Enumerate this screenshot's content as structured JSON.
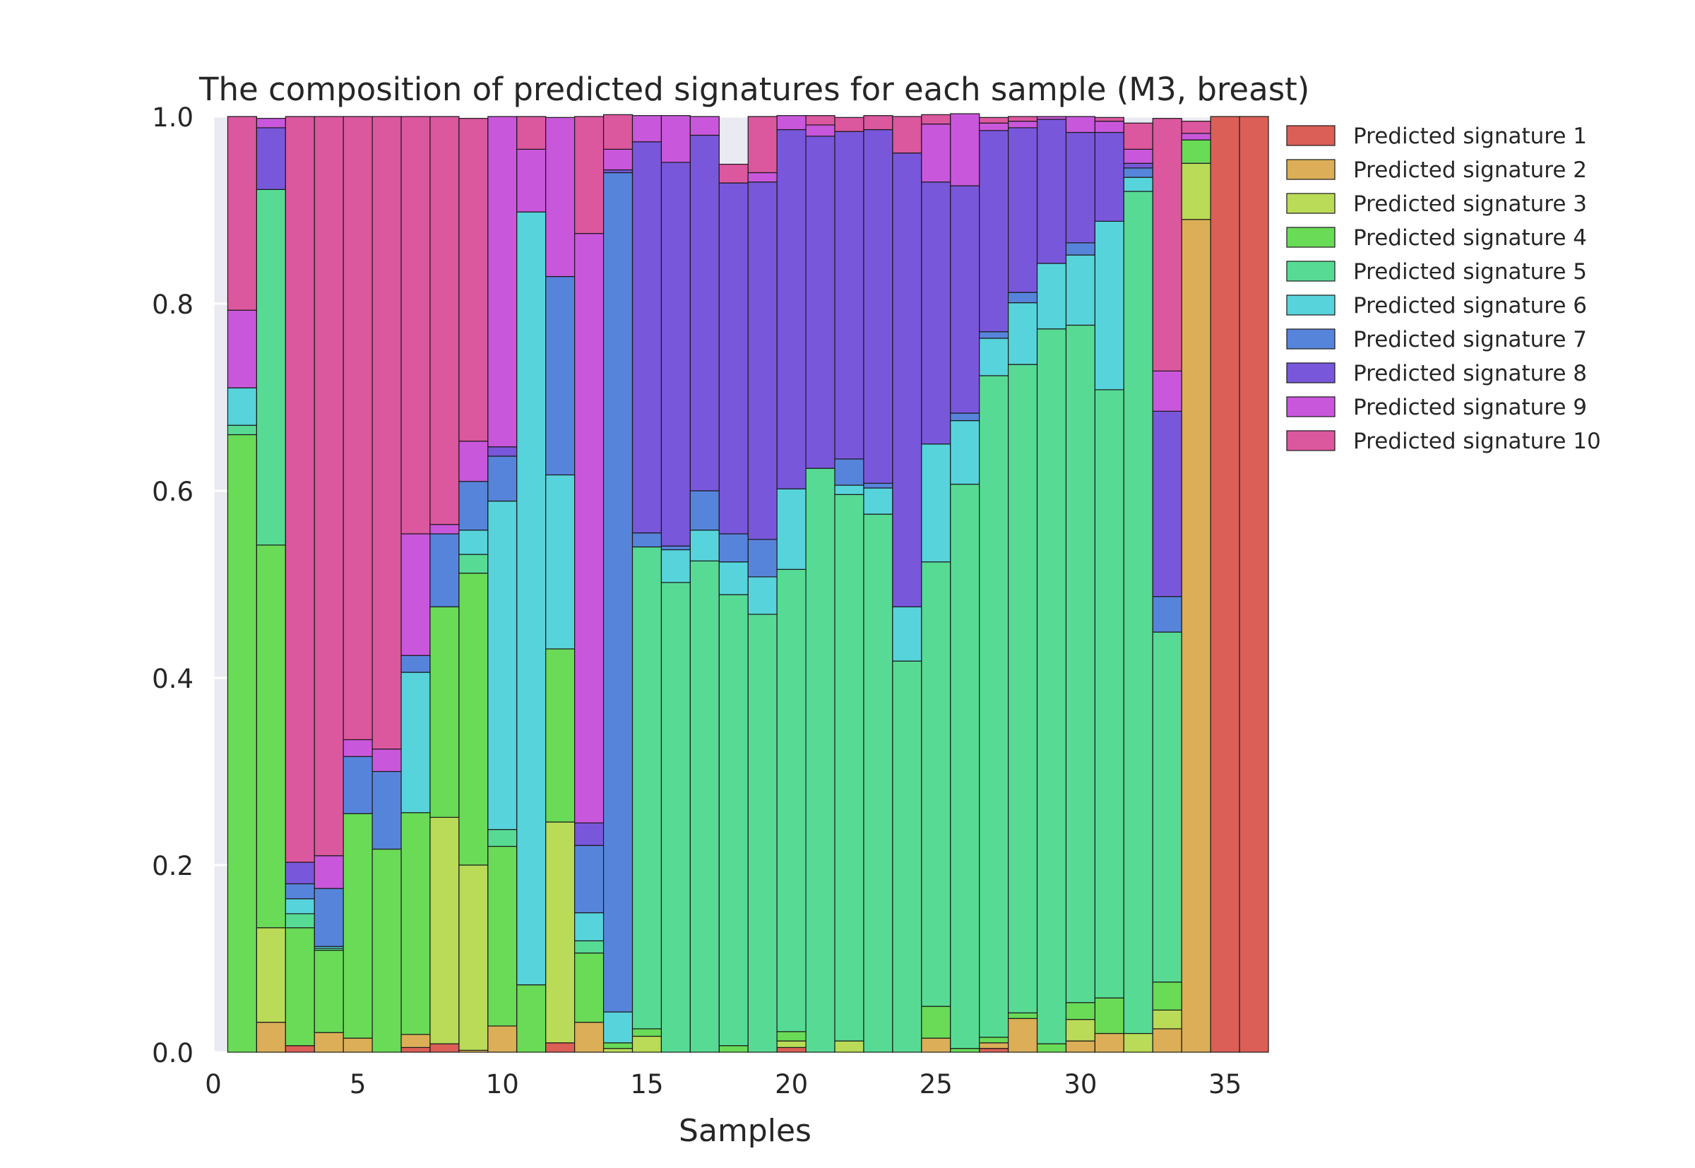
{
  "chart_data": {
    "type": "bar",
    "stacked": true,
    "title": "The composition of predicted signatures for each sample (M3, breast)",
    "xlabel": "Samples",
    "ylabel": "",
    "xlim": [
      0,
      36.5
    ],
    "ylim": [
      0,
      1.0
    ],
    "x_ticks": [
      "0",
      "5",
      "10",
      "15",
      "20",
      "25",
      "30",
      "35"
    ],
    "y_ticks": [
      "0.0",
      "0.2",
      "0.4",
      "0.6",
      "0.8",
      "1.0"
    ],
    "grid": true,
    "legend_placement": "outside-right",
    "x": [
      1,
      2,
      3,
      4,
      5,
      6,
      7,
      8,
      9,
      10,
      11,
      12,
      13,
      14,
      15,
      16,
      17,
      18,
      19,
      20,
      21,
      22,
      23,
      24,
      25,
      26,
      27,
      28,
      29,
      30,
      31,
      32,
      33,
      34,
      35,
      36
    ],
    "series": [
      {
        "name": "Predicted signature 1",
        "color": "#db5f57",
        "values": [
          0,
          0,
          0.007,
          0,
          0,
          0,
          0.005,
          0.009,
          0,
          0,
          0,
          0.01,
          0,
          0,
          0,
          0,
          0,
          0,
          0,
          0.005,
          0,
          0,
          0,
          0,
          0,
          0,
          0.004,
          0,
          0,
          0,
          0,
          0,
          0,
          0,
          1.0,
          1.0
        ]
      },
      {
        "name": "Predicted signature 2",
        "color": "#dbae57",
        "values": [
          0,
          0.032,
          0,
          0.021,
          0.015,
          0,
          0.014,
          0,
          0.002,
          0.028,
          0,
          0,
          0.032,
          0,
          0,
          0,
          0,
          0,
          0,
          0,
          0,
          0,
          0,
          0,
          0.015,
          0,
          0.006,
          0.036,
          0,
          0.012,
          0.02,
          0,
          0.025,
          0.89,
          0,
          0
        ]
      },
      {
        "name": "Predicted signature 3",
        "color": "#b9db57",
        "values": [
          0,
          0.101,
          0,
          0,
          0,
          0,
          0,
          0.242,
          0.198,
          0,
          0,
          0.236,
          0,
          0.004,
          0.017,
          0,
          0,
          0,
          0,
          0.007,
          0,
          0.012,
          0,
          0,
          0,
          0,
          0,
          0,
          0,
          0.023,
          0,
          0.02,
          0.02,
          0.06,
          0,
          0
        ]
      },
      {
        "name": "Predicted signature 4",
        "color": "#69db57",
        "values": [
          0.66,
          0.409,
          0.126,
          0.088,
          0.24,
          0.217,
          0.237,
          0.225,
          0.312,
          0.192,
          0.072,
          0.185,
          0.074,
          0.006,
          0.008,
          0,
          0,
          0.007,
          0,
          0.01,
          0,
          0,
          0,
          0,
          0.034,
          0.004,
          0.006,
          0.006,
          0.009,
          0.018,
          0.038,
          0,
          0.03,
          0.025,
          0,
          0
        ]
      },
      {
        "name": "Predicted signature 5",
        "color": "#57db94",
        "values": [
          0.01,
          0.38,
          0.015,
          0.002,
          0,
          0,
          0,
          0,
          0.02,
          0.018,
          0,
          0,
          0.013,
          0,
          0.515,
          0.502,
          0.525,
          0.482,
          0.468,
          0.494,
          0.624,
          0.584,
          0.575,
          0.418,
          0.475,
          0.603,
          0.707,
          0.693,
          0.764,
          0.724,
          0.65,
          0.9,
          0.374,
          0,
          0,
          0
        ]
      },
      {
        "name": "Predicted signature 6",
        "color": "#57d3db",
        "values": [
          0.04,
          0,
          0.016,
          0.002,
          0,
          0,
          0.15,
          0,
          0.026,
          0.351,
          0.826,
          0.186,
          0.03,
          0.033,
          0,
          0.035,
          0.033,
          0.035,
          0.04,
          0.086,
          0,
          0.01,
          0.028,
          0.058,
          0.126,
          0.068,
          0.04,
          0.066,
          0.07,
          0.075,
          0.18,
          0.015,
          0,
          0,
          0,
          0
        ]
      },
      {
        "name": "Predicted signature 7",
        "color": "#5784db",
        "values": [
          0,
          0,
          0.016,
          0.062,
          0.061,
          0.083,
          0.018,
          0.078,
          0.052,
          0.048,
          0,
          0.212,
          0.072,
          0.897,
          0.015,
          0.004,
          0.042,
          0.03,
          0.04,
          0,
          0,
          0.028,
          0.005,
          0,
          0,
          0.008,
          0.007,
          0.011,
          0,
          0.013,
          0,
          0.01,
          0.038,
          0,
          0,
          0
        ]
      },
      {
        "name": "Predicted signature 8",
        "color": "#7957db",
        "values": [
          0,
          0.066,
          0.023,
          0,
          0,
          0,
          0,
          0,
          0,
          0.01,
          0,
          0,
          0.024,
          0.003,
          0.418,
          0.41,
          0.38,
          0.375,
          0.382,
          0.384,
          0.355,
          0.35,
          0.378,
          0.485,
          0.28,
          0.243,
          0.215,
          0.176,
          0.154,
          0.118,
          0.095,
          0.005,
          0.198,
          0,
          0,
          0
        ]
      },
      {
        "name": "Predicted signature 9",
        "color": "#c957db",
        "values": [
          0.083,
          0.01,
          0,
          0.035,
          0.018,
          0.024,
          0.13,
          0.01,
          0.043,
          0.353,
          0.067,
          0.17,
          0.63,
          0.022,
          0.028,
          0.05,
          0.02,
          0,
          0.01,
          0.015,
          0.012,
          0,
          0,
          0,
          0.062,
          0.077,
          0.008,
          0.007,
          0.003,
          0.017,
          0.012,
          0.015,
          0.043,
          0.007,
          0,
          0
        ]
      },
      {
        "name": "Predicted signature 10",
        "color": "#db579e",
        "values": [
          0.207,
          0,
          0.797,
          0.79,
          0.666,
          0.676,
          0.446,
          0.436,
          0.345,
          0,
          0.035,
          0,
          0.125,
          0.037,
          0,
          0,
          0,
          0.02,
          0.06,
          0,
          0.01,
          0.015,
          0.015,
          0.039,
          0.01,
          0,
          0.006,
          0.005,
          0,
          0,
          0.004,
          0.028,
          0.27,
          0.013,
          0,
          0
        ]
      }
    ]
  }
}
